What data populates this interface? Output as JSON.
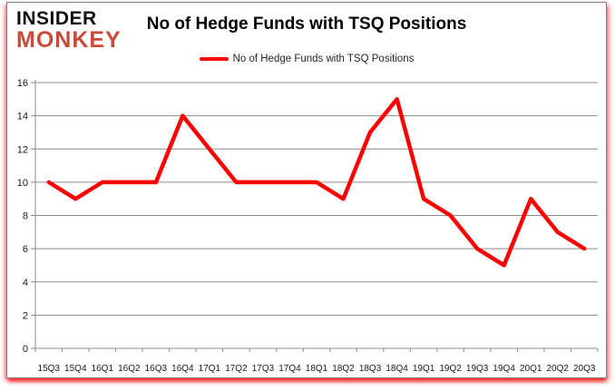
{
  "logo": {
    "line1": "INSIDER",
    "line2": "MONKEY"
  },
  "chart_data": {
    "type": "line",
    "title": "No of Hedge Funds with TSQ Positions",
    "categories": [
      "15Q3",
      "15Q4",
      "16Q1",
      "16Q2",
      "16Q3",
      "16Q4",
      "17Q1",
      "17Q2",
      "17Q3",
      "17Q4",
      "18Q1",
      "18Q2",
      "18Q3",
      "18Q4",
      "19Q1",
      "19Q2",
      "19Q3",
      "19Q4",
      "20Q1",
      "20Q2",
      "20Q3"
    ],
    "series": [
      {
        "name": "No of Hedge Funds with TSQ Positions",
        "color": "#FF0000",
        "values": [
          10,
          9,
          10,
          10,
          10,
          14,
          12,
          10,
          10,
          10,
          10,
          9,
          13,
          15,
          9,
          8,
          6,
          5,
          9,
          7,
          6
        ]
      }
    ],
    "xlabel": "",
    "ylabel": "",
    "ylim": [
      0,
      16
    ],
    "ytick_interval": 2,
    "grid": true,
    "legend_position": "top-center"
  },
  "colors": {
    "line_red": "#FF0000",
    "logo_red": "#C94A38",
    "logo_black": "#101010",
    "gridline": "#8C8C8C",
    "axis_line": "#8C8C8C",
    "axis_text": "#1A1A1A",
    "card_border": "#808080",
    "glow_red": "#FF0000"
  }
}
